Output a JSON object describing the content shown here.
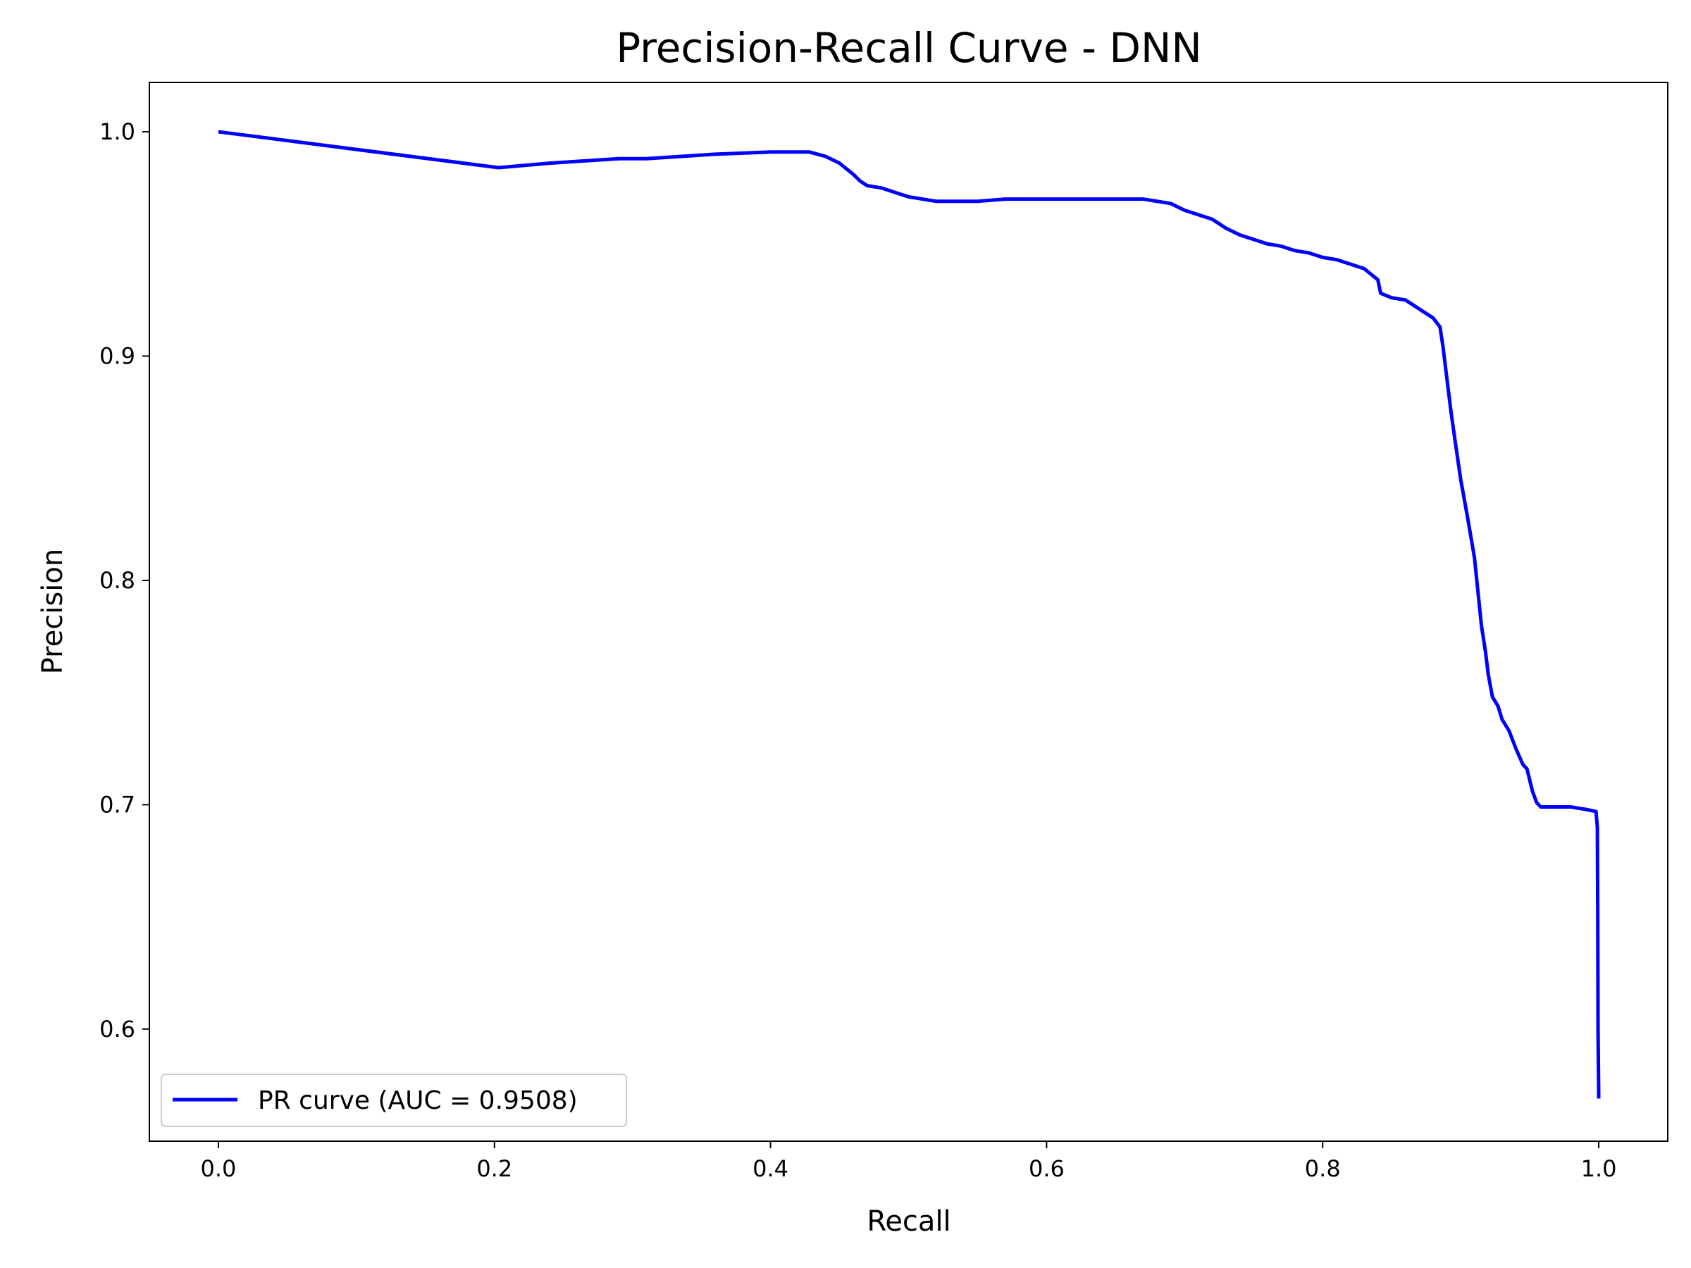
{
  "chart_data": {
    "type": "line",
    "title": "Precision-Recall Curve - DNN",
    "xlabel": "Recall",
    "ylabel": "Precision",
    "xlim": [
      -0.05,
      1.05
    ],
    "ylim": [
      0.55,
      1.022
    ],
    "xticks": [
      0.0,
      0.2,
      0.4,
      0.6,
      0.8,
      1.0
    ],
    "xtick_labels": [
      "0.0",
      "0.2",
      "0.4",
      "0.6",
      "0.8",
      "1.0"
    ],
    "yticks": [
      0.6,
      0.7,
      0.8,
      0.9,
      1.0
    ],
    "ytick_labels": [
      "0.6",
      "0.7",
      "0.8",
      "0.9",
      "1.0"
    ],
    "grid": false,
    "legend_position": "lower-left",
    "series": [
      {
        "name": "PR curve (AUC = 0.9508)",
        "color": "#0000ff",
        "x": [
          0.0,
          0.203,
          0.24,
          0.29,
          0.31,
          0.36,
          0.4,
          0.428,
          0.44,
          0.45,
          0.46,
          0.465,
          0.47,
          0.48,
          0.49,
          0.5,
          0.51,
          0.52,
          0.53,
          0.55,
          0.57,
          0.58,
          0.59,
          0.61,
          0.63,
          0.65,
          0.67,
          0.68,
          0.69,
          0.7,
          0.71,
          0.72,
          0.73,
          0.74,
          0.75,
          0.76,
          0.77,
          0.78,
          0.79,
          0.8,
          0.81,
          0.82,
          0.83,
          0.84,
          0.842,
          0.85,
          0.86,
          0.87,
          0.875,
          0.88,
          0.885,
          0.887,
          0.888,
          0.89,
          0.893,
          0.896,
          0.9,
          0.905,
          0.91,
          0.915,
          0.918,
          0.92,
          0.923,
          0.927,
          0.93,
          0.935,
          0.94,
          0.945,
          0.948,
          0.952,
          0.955,
          0.958,
          0.962,
          0.965,
          0.97,
          0.98,
          0.99,
          0.998,
          0.999,
          0.9993,
          0.9995,
          1.0
        ],
        "y": [
          1.0,
          0.984,
          0.986,
          0.988,
          0.988,
          0.99,
          0.991,
          0.991,
          0.989,
          0.986,
          0.981,
          0.978,
          0.976,
          0.975,
          0.973,
          0.971,
          0.97,
          0.969,
          0.969,
          0.969,
          0.97,
          0.97,
          0.97,
          0.97,
          0.97,
          0.97,
          0.97,
          0.969,
          0.968,
          0.965,
          0.963,
          0.961,
          0.957,
          0.954,
          0.952,
          0.95,
          0.949,
          0.947,
          0.946,
          0.944,
          0.943,
          0.941,
          0.939,
          0.934,
          0.928,
          0.926,
          0.925,
          0.921,
          0.919,
          0.917,
          0.913,
          0.905,
          0.9,
          0.89,
          0.875,
          0.862,
          0.845,
          0.828,
          0.81,
          0.78,
          0.768,
          0.758,
          0.748,
          0.744,
          0.738,
          0.733,
          0.725,
          0.718,
          0.716,
          0.706,
          0.701,
          0.699,
          0.699,
          0.699,
          0.699,
          0.699,
          0.698,
          0.697,
          0.69,
          0.65,
          0.6,
          0.569
        ]
      }
    ]
  }
}
